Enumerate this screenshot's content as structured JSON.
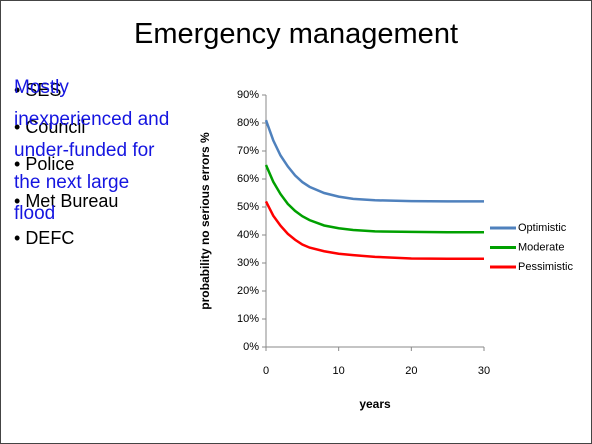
{
  "slide": {
    "title": "Emergency management",
    "bullets": [
      "SES",
      "Council",
      "Police",
      "Met Bureau",
      "DEFC"
    ],
    "note": "Mostly inexperienced and under-funded for the next large flood"
  },
  "chart_data": {
    "type": "line",
    "x": [
      0,
      1,
      2,
      3,
      4,
      5,
      6,
      8,
      10,
      12,
      15,
      20,
      25,
      30
    ],
    "series": [
      {
        "name": "Optimistic",
        "color": "#4f81bd",
        "values": [
          81,
          73.8,
          68.4,
          64.5,
          61.3,
          58.9,
          57.2,
          55.0,
          53.7,
          52.9,
          52.4,
          52.1,
          52,
          52
        ]
      },
      {
        "name": "Moderate",
        "color": "#00a000",
        "values": [
          65,
          59.0,
          54.6,
          51.1,
          48.6,
          46.7,
          45.3,
          43.4,
          42.4,
          41.8,
          41.3,
          41.1,
          41,
          41
        ]
      },
      {
        "name": "Pessimistic",
        "color": "#ff0000",
        "values": [
          52,
          46.9,
          43.3,
          40.4,
          38.3,
          36.6,
          35.5,
          34.2,
          33.3,
          32.8,
          32.2,
          31.6,
          31.5,
          31.5
        ]
      }
    ],
    "xlabel": "years",
    "ylabel": "probability no serious errors %",
    "xlim": [
      0,
      30
    ],
    "xticks": [
      0,
      10,
      20,
      30
    ],
    "ylim": [
      0,
      90
    ],
    "yticks": [
      {
        "value": 0,
        "label": "0%"
      },
      {
        "value": 10,
        "label": "10%"
      },
      {
        "value": 20,
        "label": "20%"
      },
      {
        "value": 30,
        "label": "30%"
      },
      {
        "value": 40,
        "label": "40%"
      },
      {
        "value": 50,
        "label": "50%"
      },
      {
        "value": 60,
        "label": "60%"
      },
      {
        "value": 70,
        "label": "70%"
      },
      {
        "value": 80,
        "label": "80%"
      },
      {
        "value": 90,
        "label": "90%"
      }
    ],
    "legend": "right"
  }
}
